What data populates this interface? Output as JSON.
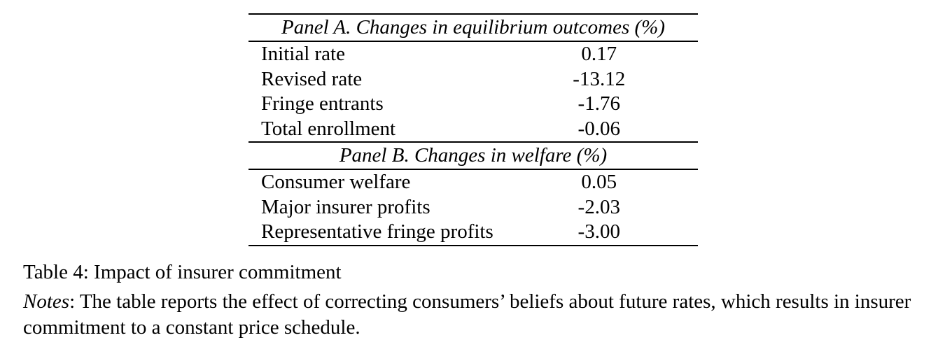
{
  "table": {
    "panels": [
      {
        "header": "Panel A. Changes in equilibrium outcomes (%)",
        "rows": [
          {
            "label": "Initial rate",
            "value": "0.17"
          },
          {
            "label": "Revised rate",
            "value": "-13.12"
          },
          {
            "label": "Fringe entrants",
            "value": "-1.76"
          },
          {
            "label": "Total enrollment",
            "value": "-0.06"
          }
        ]
      },
      {
        "header": "Panel B. Changes in welfare (%)",
        "rows": [
          {
            "label": "Consumer welfare",
            "value": "0.05"
          },
          {
            "label": "Major insurer profits",
            "value": "-2.03"
          },
          {
            "label": "Representative fringe profits",
            "value": "-3.00"
          }
        ]
      }
    ]
  },
  "caption": {
    "text": "Table 4: Impact of insurer commitment"
  },
  "notes": {
    "label": "Notes",
    "text": ": The table reports the effect of correcting consumers’ beliefs about future rates, which results in insurer commitment to a constant price schedule."
  }
}
